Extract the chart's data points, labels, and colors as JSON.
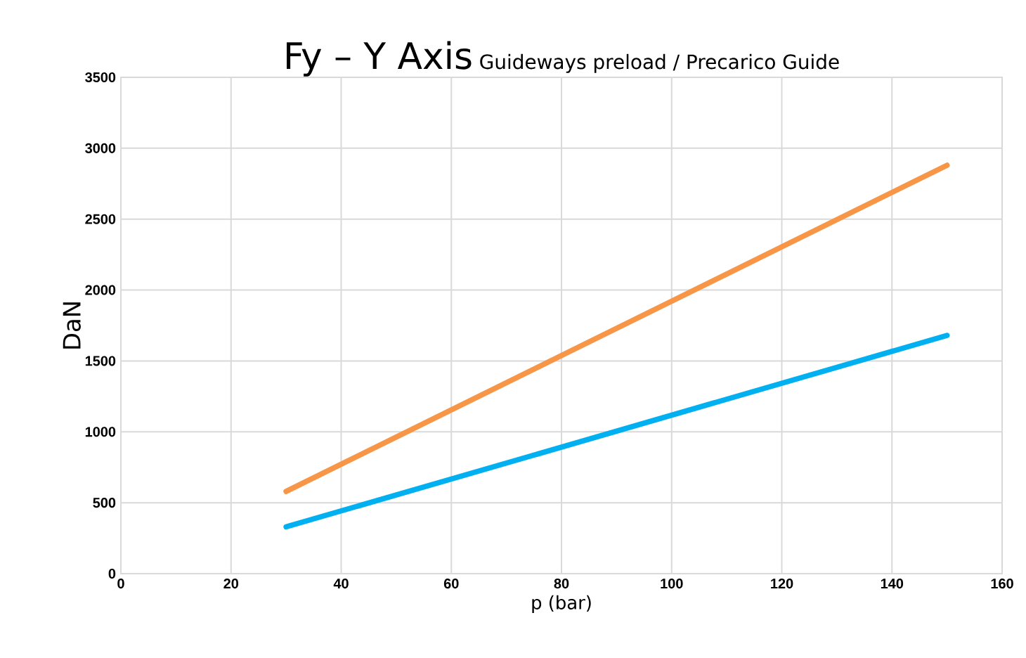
{
  "chart_data": {
    "type": "line",
    "title": "Fy – Y Axis",
    "subtitle": "Guideways preload / Precarico Guide",
    "xlabel": "p (bar)",
    "ylabel": "DaN",
    "x": [
      30,
      150
    ],
    "series": [
      {
        "color": "#f79646",
        "values": [
          580,
          2880
        ]
      },
      {
        "color": "#00b0f0",
        "values": [
          330,
          1680
        ]
      }
    ],
    "xlim": [
      0,
      160
    ],
    "ylim": [
      0,
      3500
    ],
    "xticks": [
      0,
      20,
      40,
      60,
      80,
      100,
      120,
      140,
      160
    ],
    "yticks": [
      0,
      500,
      1000,
      1500,
      2000,
      2500,
      3000,
      3500
    ],
    "grid": true,
    "marker": "none",
    "line_style": "solid"
  }
}
